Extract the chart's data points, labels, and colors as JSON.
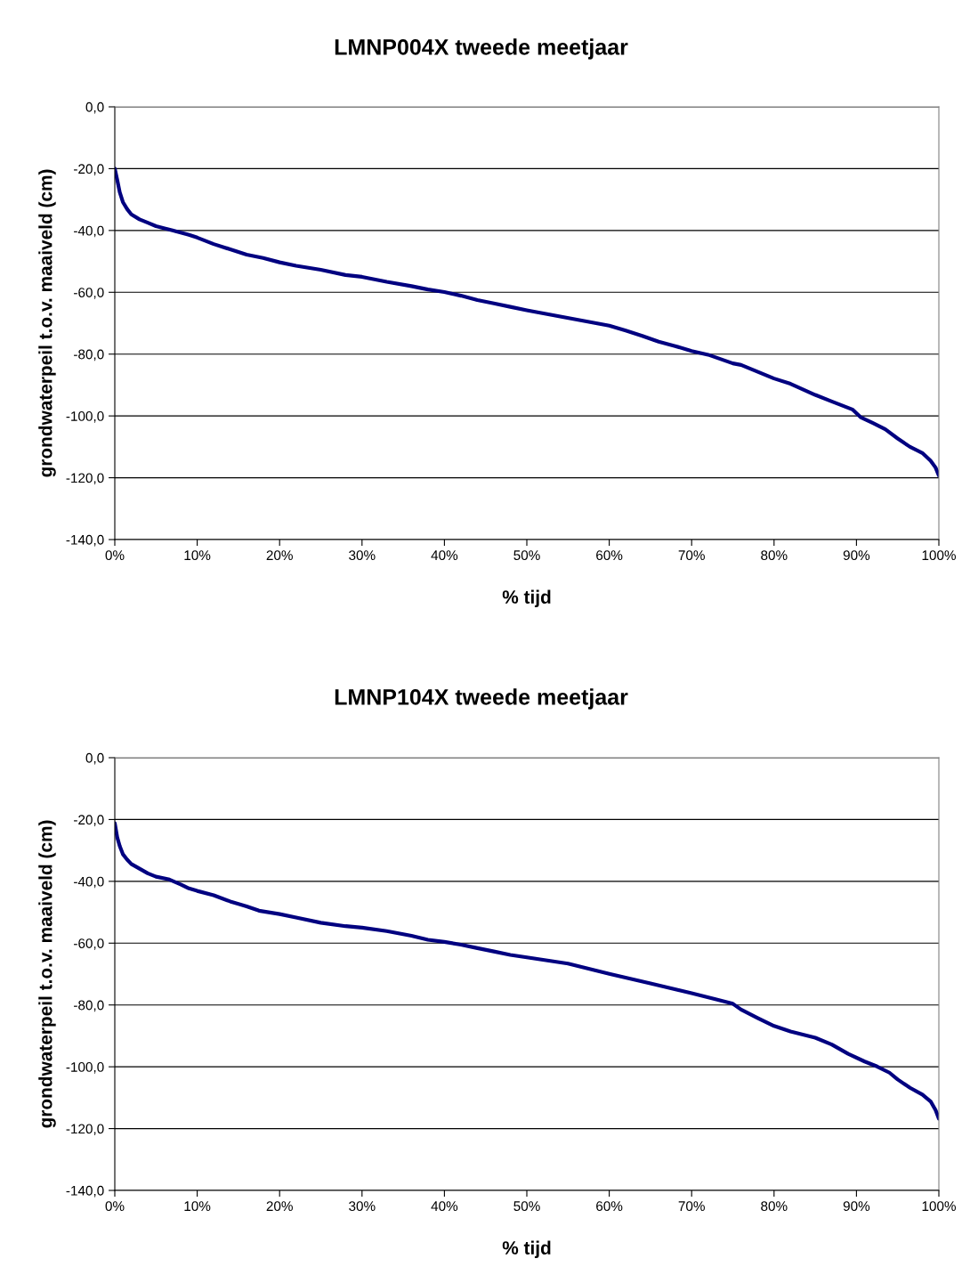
{
  "chart_data": [
    {
      "type": "line",
      "title": "LMNP004X tweede meetjaar",
      "xlabel": "% tijd",
      "ylabel": "grondwaterpeil t.o.v. maaiveld (cm)",
      "grid": "y",
      "marker": "none",
      "line_style": "solid",
      "xlim": [
        0,
        100
      ],
      "xticks": [
        {
          "value": 0,
          "label": "0%"
        },
        {
          "value": 10,
          "label": "10%"
        },
        {
          "value": 20,
          "label": "20%"
        },
        {
          "value": 30,
          "label": "30%"
        },
        {
          "value": 40,
          "label": "40%"
        },
        {
          "value": 50,
          "label": "50%"
        },
        {
          "value": 60,
          "label": "60%"
        },
        {
          "value": 70,
          "label": "70%"
        },
        {
          "value": 80,
          "label": "80%"
        },
        {
          "value": 90,
          "label": "90%"
        },
        {
          "value": 100,
          "label": "100%"
        }
      ],
      "ylim": [
        -140,
        0
      ],
      "yticks": [
        {
          "value": 0,
          "label": "0,0"
        },
        {
          "value": -20,
          "label": "-20,0"
        },
        {
          "value": -40,
          "label": "-40,0"
        },
        {
          "value": -60,
          "label": "-60,0"
        },
        {
          "value": -80,
          "label": "-80,0"
        },
        {
          "value": -100,
          "label": "-100,0"
        },
        {
          "value": -120,
          "label": "-120,0"
        },
        {
          "value": -140,
          "label": "-140,0"
        }
      ],
      "series": [
        {
          "color": "#000080",
          "x": [
            0,
            0.3,
            0.6,
            1,
            1.5,
            2,
            3,
            4,
            5,
            7,
            9,
            10,
            12,
            14,
            16,
            18,
            20,
            22,
            25,
            28,
            30,
            33,
            36,
            38,
            40,
            42,
            44,
            46,
            48,
            50,
            60,
            62,
            64,
            66,
            68,
            70,
            72,
            75,
            76,
            80,
            82,
            85,
            87,
            89.5,
            90.5,
            92,
            93.5,
            95,
            96.5,
            98,
            99,
            99.6,
            100
          ],
          "values": [
            -20,
            -23.7,
            -27.6,
            -30.9,
            -33.1,
            -34.8,
            -36.4,
            -37.5,
            -38.6,
            -40,
            -41.4,
            -42.3,
            -44.4,
            -46.1,
            -47.8,
            -48.9,
            -50.3,
            -51.4,
            -52.7,
            -54.4,
            -55,
            -56.6,
            -58,
            -59.1,
            -59.9,
            -61.1,
            -62.5,
            -63.6,
            -64.7,
            -65.8,
            -70.8,
            -72.4,
            -74.1,
            -76,
            -77.4,
            -79,
            -80.2,
            -83,
            -83.5,
            -87.9,
            -89.6,
            -93.2,
            -95.3,
            -97.9,
            -100.4,
            -102.3,
            -104.3,
            -107.3,
            -110,
            -112,
            -114.5,
            -116.7,
            -119.3
          ]
        }
      ]
    },
    {
      "type": "line",
      "title": "LMNP104X tweede meetjaar",
      "xlabel": "% tijd",
      "ylabel": "grondwaterpeil t.o.v. maaiveld (cm)",
      "grid": "y",
      "marker": "none",
      "line_style": "solid",
      "xlim": [
        0,
        100
      ],
      "xticks": [
        {
          "value": 0,
          "label": "0%"
        },
        {
          "value": 10,
          "label": "10%"
        },
        {
          "value": 20,
          "label": "20%"
        },
        {
          "value": 30,
          "label": "30%"
        },
        {
          "value": 40,
          "label": "40%"
        },
        {
          "value": 50,
          "label": "50%"
        },
        {
          "value": 60,
          "label": "60%"
        },
        {
          "value": 70,
          "label": "70%"
        },
        {
          "value": 80,
          "label": "80%"
        },
        {
          "value": 90,
          "label": "90%"
        },
        {
          "value": 100,
          "label": "100%"
        }
      ],
      "ylim": [
        -140,
        0
      ],
      "yticks": [
        {
          "value": 0,
          "label": "0,0"
        },
        {
          "value": -20,
          "label": "-20,0"
        },
        {
          "value": -40,
          "label": "-40,0"
        },
        {
          "value": -60,
          "label": "-60,0"
        },
        {
          "value": -80,
          "label": "-80,0"
        },
        {
          "value": -100,
          "label": "-100,0"
        },
        {
          "value": -120,
          "label": "-120,0"
        },
        {
          "value": -140,
          "label": "-140,0"
        }
      ],
      "series": [
        {
          "color": "#000080",
          "x": [
            0,
            0.3,
            0.6,
            1,
            1.5,
            2,
            3,
            4,
            5,
            6.5,
            8,
            9,
            10,
            12,
            14,
            16,
            17.5,
            20,
            22,
            25,
            28,
            30,
            33,
            36,
            38,
            40,
            42,
            44,
            46,
            48,
            50,
            55,
            60,
            65,
            70,
            73,
            75,
            76,
            78,
            80,
            82,
            85,
            87,
            89,
            91,
            92.5,
            94,
            95,
            96.5,
            98,
            99,
            99.6,
            100
          ],
          "values": [
            -21.2,
            -25.8,
            -28.6,
            -31.3,
            -33,
            -34.4,
            -35.9,
            -37.4,
            -38.5,
            -39.3,
            -41,
            -42.3,
            -43.1,
            -44.5,
            -46.5,
            -48.1,
            -49.5,
            -50.6,
            -51.7,
            -53.4,
            -54.5,
            -55,
            -56.1,
            -57.6,
            -58.9,
            -59.6,
            -60.5,
            -61.6,
            -62.7,
            -63.8,
            -64.6,
            -66.6,
            -69.9,
            -73,
            -76.2,
            -78.2,
            -79.6,
            -81.5,
            -84.2,
            -86.8,
            -88.6,
            -90.6,
            -92.8,
            -95.8,
            -98.3,
            -99.9,
            -101.9,
            -104.1,
            -106.8,
            -109,
            -111.2,
            -114,
            -116.8
          ]
        }
      ]
    }
  ]
}
